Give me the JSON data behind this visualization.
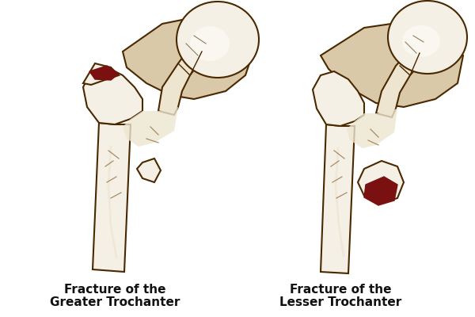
{
  "background_color": "#ffffff",
  "outline_color": "#4a2800",
  "bone_light": "#f5f0e6",
  "bone_cream": "#ede5d0",
  "bone_tan": "#d9c9a8",
  "bone_shadow": "#c8b48a",
  "fracture_color": "#7a1010",
  "crack_color": "#8b6030",
  "label1_line1": "Fracture of the",
  "label1_line2": "Greater Trochanter",
  "label2_line1": "Fracture of the",
  "label2_line2": "Lesser Trochanter",
  "label_fontsize": 11,
  "label_color": "#111111",
  "fig_width": 6.0,
  "fig_height": 4.0
}
